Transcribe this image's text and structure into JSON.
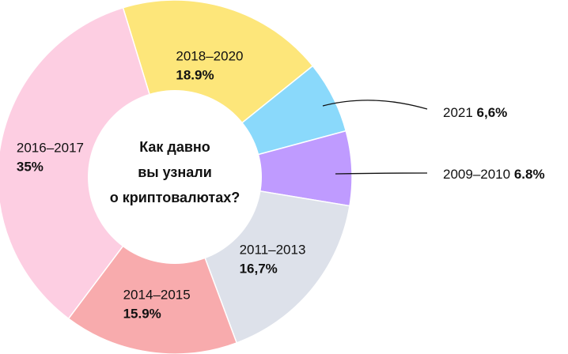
{
  "chart_data": {
    "type": "pie",
    "variant": "donut",
    "title": "Как давно вы узнали о криптовалютах?",
    "title_lines": [
      "Как давно",
      "вы узнали",
      "о криптовалютах?"
    ],
    "slices": [
      {
        "label": "2018–2020",
        "value_text": "18.9%",
        "value": 18.9,
        "color": "#fde67a",
        "label_placement": "inside"
      },
      {
        "label": "2021",
        "value_text": "6,6%",
        "value": 6.6,
        "color": "#8ad9fb",
        "label_placement": "outside"
      },
      {
        "label": "2009–2010",
        "value_text": "6.8%",
        "value": 6.8,
        "color": "#bf9bff",
        "label_placement": "outside"
      },
      {
        "label": "2011–2013",
        "value_text": "16,7%",
        "value": 16.7,
        "color": "#dde1ea",
        "label_placement": "inside"
      },
      {
        "label": "2014–2015",
        "value_text": "15.9%",
        "value": 15.9,
        "color": "#f8abad",
        "label_placement": "inside"
      },
      {
        "label": "2016–2017",
        "value_text": "35%",
        "value": 35,
        "color": "#fdcee2",
        "label_placement": "inside"
      }
    ]
  }
}
